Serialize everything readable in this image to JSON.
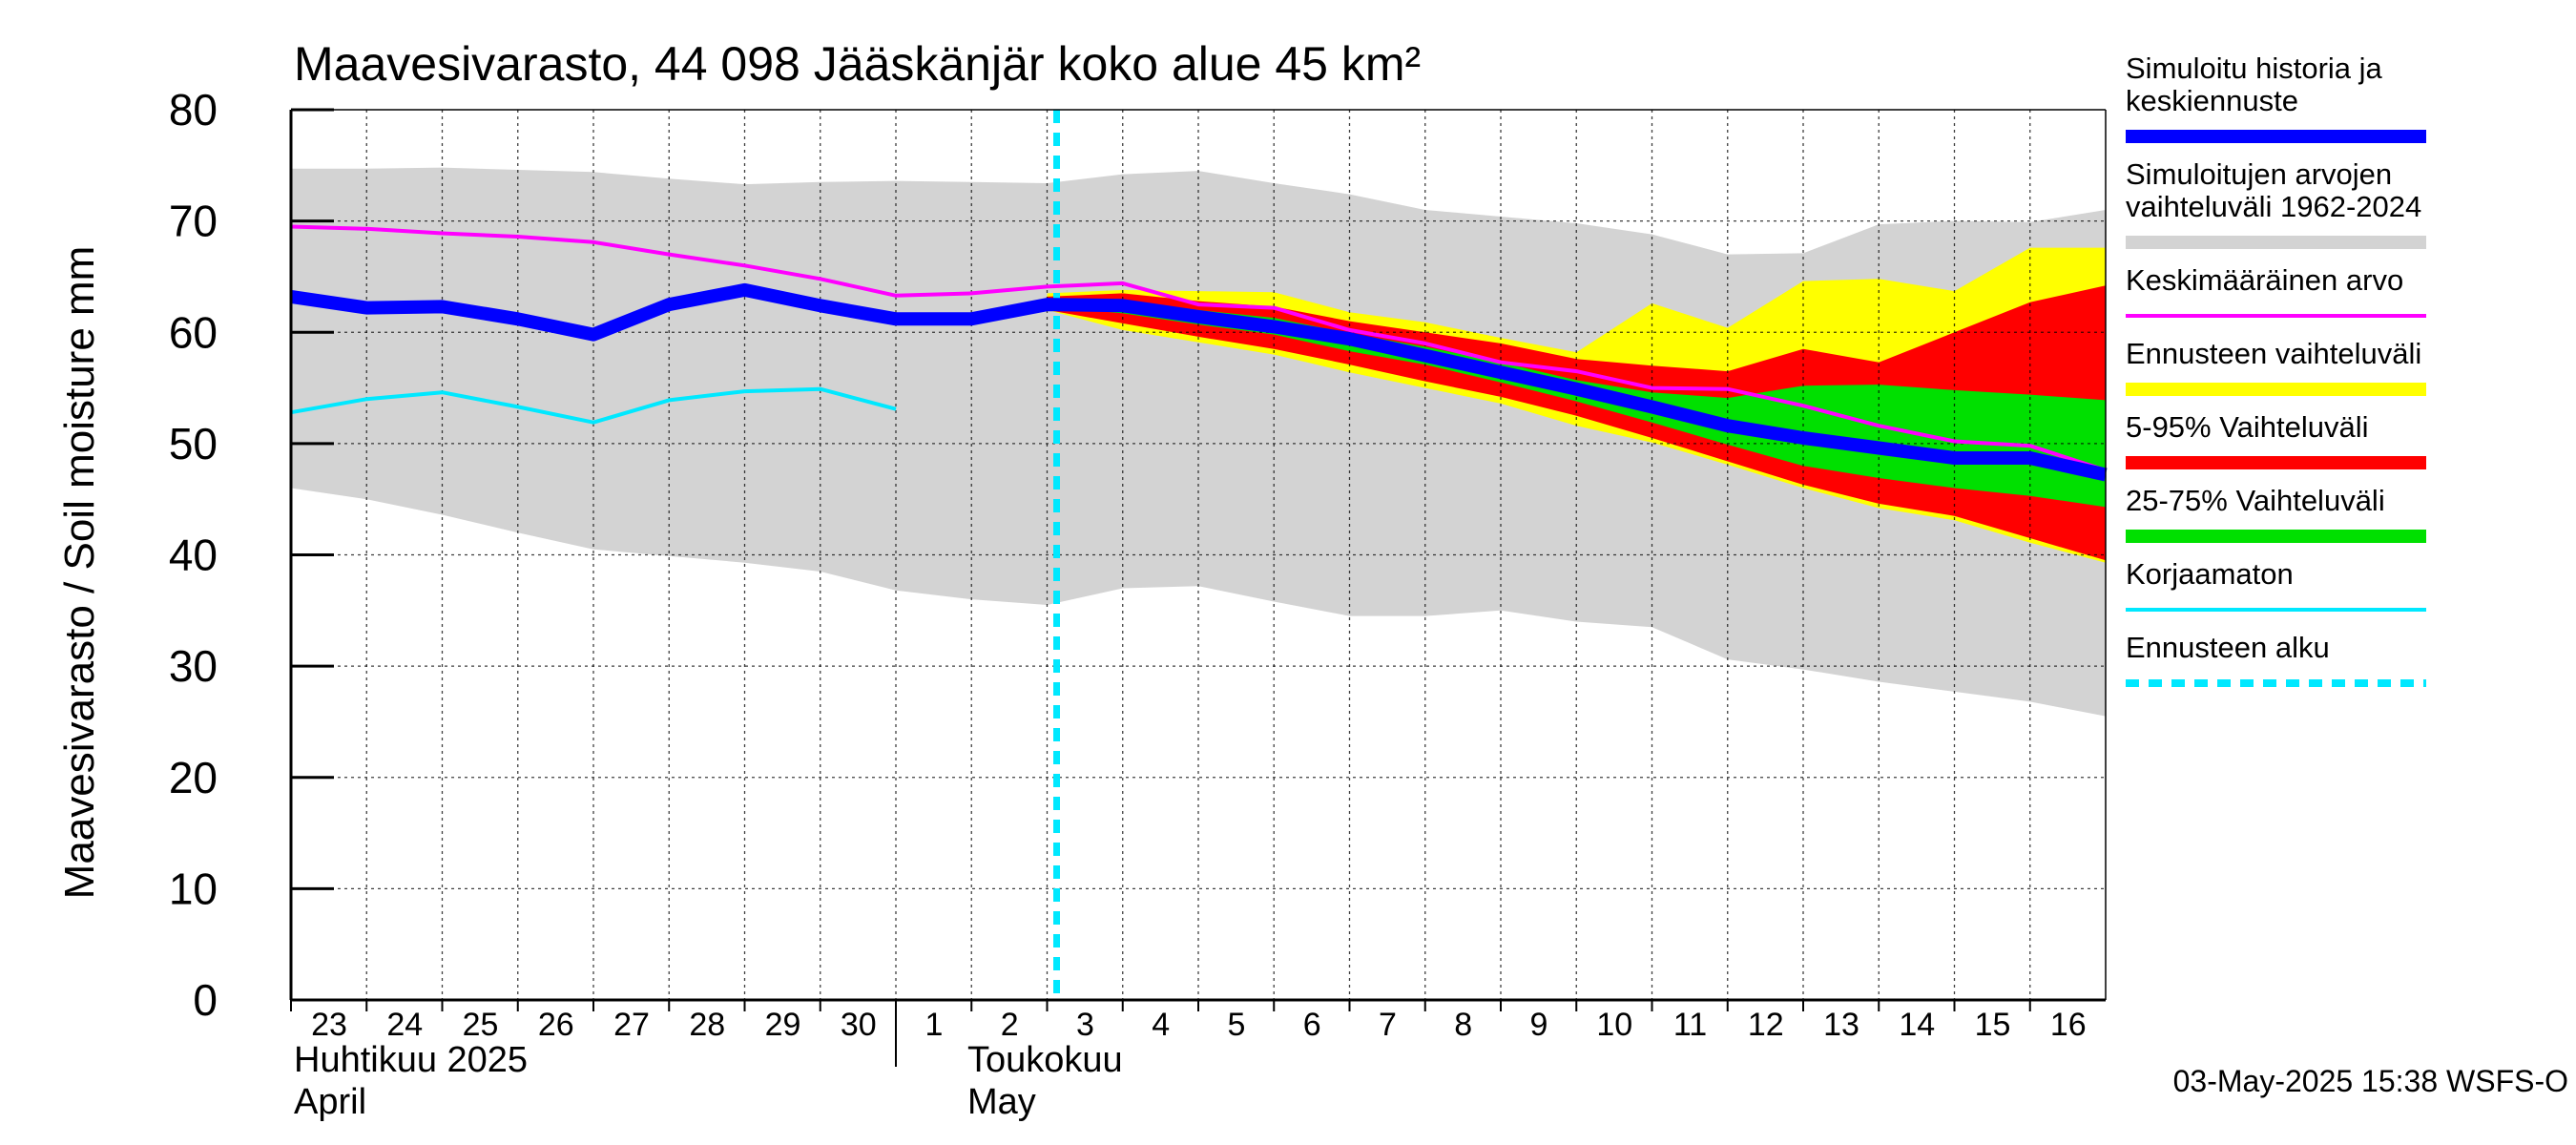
{
  "chart_data": {
    "type": "area",
    "title": "Maavesivarasto, 44 098 Jääskänjär koko alue 45 km²",
    "ylabel": "Maavesivarasto / Soil moisture   mm",
    "ylim": [
      0,
      80
    ],
    "yticks": [
      "0",
      "10",
      "20",
      "30",
      "40",
      "50",
      "60",
      "70",
      "80"
    ],
    "grid": true,
    "day_labels": [
      "23",
      "24",
      "25",
      "26",
      "27",
      "28",
      "29",
      "30",
      "1",
      "2",
      "3",
      "4",
      "5",
      "6",
      "7",
      "8",
      "9",
      "10",
      "11",
      "12",
      "13",
      "14",
      "15",
      "16"
    ],
    "month_labels": [
      {
        "line1": "Huhtikuu  2025",
        "line2": "April"
      },
      {
        "line1": "Toukokuu",
        "line2": "May"
      }
    ],
    "x_start_day": 23,
    "x_end_day": 47,
    "forecast_start_day": 33.0,
    "timestamp": "03-May-2025 15:38 WSFS-O",
    "colors": {
      "history": "#0000ff",
      "range_hist": "#d3d3d3",
      "mean": "#ff00ff",
      "forecast_range": "#ffff00",
      "p5_95": "#ff0000",
      "p25_75": "#00e000",
      "uncorrected": "#00e8ff",
      "forecast_start": "#00e8ff"
    },
    "series": [
      {
        "name": "Simuloitujen arvojen vaihteluväli 1962-2024",
        "kind": "band",
        "x": [
          23,
          24,
          25,
          26,
          27,
          28,
          29,
          30,
          31,
          32,
          33,
          34,
          35,
          36,
          37,
          38,
          39,
          40,
          41,
          42,
          43,
          44,
          45,
          46,
          47
        ],
        "upper": [
          74.7,
          74.7,
          74.8,
          74.6,
          74.4,
          73.8,
          73.3,
          73.5,
          73.6,
          73.5,
          73.4,
          74.2,
          74.5,
          73.4,
          72.4,
          71.0,
          70.4,
          69.8,
          68.8,
          67.0,
          67.1,
          69.7,
          70.0,
          69.9,
          71.0
        ],
        "lower": [
          46.0,
          45.0,
          43.6,
          42.0,
          40.5,
          39.9,
          39.3,
          38.5,
          36.8,
          36.0,
          35.5,
          37.0,
          37.2,
          35.8,
          34.5,
          34.5,
          35.0,
          34.0,
          33.5,
          30.6,
          29.7,
          28.6,
          27.7,
          26.8,
          25.5
        ]
      },
      {
        "name": "Ennusteen vaihteluväli",
        "kind": "band",
        "x": [
          33,
          34,
          35,
          36,
          37,
          38,
          39,
          40,
          41,
          42,
          43,
          44,
          45,
          46,
          47
        ],
        "upper": [
          63.5,
          63.8,
          63.7,
          63.6,
          61.8,
          60.9,
          59.5,
          58.2,
          62.6,
          60.4,
          64.6,
          64.8,
          63.7,
          67.6,
          67.6
        ],
        "lower": [
          62.0,
          60.2,
          59.1,
          58.0,
          56.4,
          55.0,
          53.6,
          51.6,
          50.1,
          48.1,
          46.0,
          44.2,
          43.1,
          41.1,
          39.3
        ]
      },
      {
        "name": "5-95% Vaihteluväli",
        "kind": "band",
        "x": [
          33,
          34,
          35,
          36,
          37,
          38,
          39,
          40,
          41,
          42,
          43,
          44,
          45,
          46,
          47
        ],
        "upper": [
          63.2,
          63.5,
          62.8,
          62.3,
          61.0,
          60.0,
          59.0,
          57.6,
          57.0,
          56.5,
          58.5,
          57.3,
          60.0,
          62.7,
          64.2
        ],
        "lower": [
          62.0,
          60.8,
          59.6,
          58.5,
          57.1,
          55.6,
          54.2,
          52.5,
          50.5,
          48.4,
          46.3,
          44.6,
          43.5,
          41.5,
          39.5
        ]
      },
      {
        "name": "25-75% Vaihteluväli",
        "kind": "band",
        "x": [
          33,
          34,
          35,
          36,
          37,
          38,
          39,
          40,
          41,
          42,
          43,
          44,
          45,
          46,
          47
        ],
        "upper": [
          62.8,
          62.8,
          62.0,
          61.3,
          59.9,
          58.7,
          57.3,
          55.7,
          54.6,
          54.1,
          55.2,
          55.3,
          54.8,
          54.4,
          53.9
        ],
        "lower": [
          62.3,
          61.7,
          60.7,
          59.8,
          58.3,
          57.1,
          55.5,
          53.8,
          51.9,
          49.9,
          48.0,
          46.9,
          46.0,
          45.3,
          44.3
        ]
      },
      {
        "name": "Simuloitu historia ja keskiennuste",
        "kind": "line",
        "x": [
          23,
          24,
          25,
          26,
          27,
          28,
          29,
          30,
          31,
          32,
          33,
          34,
          35,
          36,
          37,
          38,
          39,
          40,
          41,
          42,
          43,
          44,
          45,
          46,
          47
        ],
        "values": [
          63.2,
          62.2,
          62.3,
          61.2,
          59.8,
          62.5,
          63.8,
          62.4,
          61.2,
          61.2,
          62.5,
          62.4,
          61.4,
          60.5,
          59.4,
          57.9,
          56.4,
          54.9,
          53.3,
          51.6,
          50.5,
          49.6,
          48.7,
          48.7,
          47.2
        ]
      },
      {
        "name": "Keskimääräinen arvo",
        "kind": "line",
        "x": [
          23,
          24,
          25,
          26,
          27,
          28,
          29,
          30,
          31,
          32,
          33,
          34,
          35,
          36,
          37,
          38,
          39,
          40,
          41,
          42,
          43,
          44,
          45,
          46,
          47
        ],
        "values": [
          69.5,
          69.3,
          68.9,
          68.6,
          68.1,
          67.0,
          66.0,
          64.8,
          63.3,
          63.5,
          64.1,
          64.4,
          62.5,
          62.2,
          60.2,
          59.0,
          57.3,
          56.5,
          55.0,
          54.9,
          53.4,
          51.6,
          50.2,
          49.8,
          47.6
        ]
      },
      {
        "name": "Korjaamaton",
        "kind": "line",
        "x": [
          23,
          24,
          25,
          26,
          27,
          28,
          29,
          30,
          31
        ],
        "values": [
          52.8,
          54.0,
          54.6,
          53.3,
          51.9,
          53.9,
          54.7,
          54.9,
          53.1
        ]
      }
    ],
    "legend": [
      {
        "label": "Simuloitu historia ja keskiennuste",
        "color": "#0000ff",
        "style": "thick"
      },
      {
        "label": "Simuloitujen arvojen vaihteluväli 1962-2024",
        "color": "#d3d3d3",
        "style": "thick"
      },
      {
        "label": "Keskimääräinen arvo",
        "color": "#ff00ff",
        "style": "thin"
      },
      {
        "label": "Ennusteen vaihteluväli",
        "color": "#ffff00",
        "style": "thick"
      },
      {
        "label": "5-95% Vaihteluväli",
        "color": "#ff0000",
        "style": "thick"
      },
      {
        "label": "25-75% Vaihteluväli",
        "color": "#00e000",
        "style": "thick"
      },
      {
        "label": "Korjaamaton",
        "color": "#00e8ff",
        "style": "thin"
      },
      {
        "label": "Ennusteen alku",
        "color": "#00e8ff",
        "style": "dashed"
      }
    ]
  }
}
